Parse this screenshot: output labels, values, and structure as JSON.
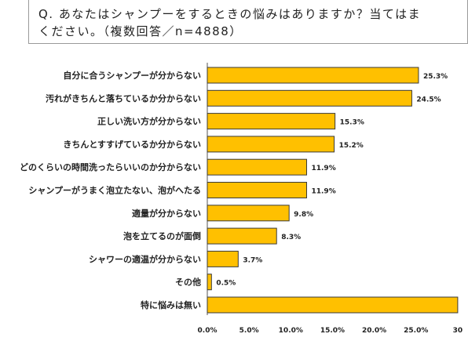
{
  "question": {
    "line1": "Q. あなたはシャンプーをするときの悩みはありますか？当てはま",
    "line2": "ください。（複数回答／n=4888）"
  },
  "chart_data": {
    "type": "bar",
    "orientation": "horizontal",
    "categories": [
      "自分に合うシャンプーが分からない",
      "汚れがきちんと落ちているか分からない",
      "正しい洗い方が分からない",
      "きちんとすすげているか分からない",
      "どのくらいの時間洗ったらいいのか分からない",
      "シャンプーがうまく泡立たない、泡がへたる",
      "適量が分からない",
      "泡を立てるのが面倒",
      "シャワーの適温が分からない",
      "その他",
      "特に悩みは無い"
    ],
    "values": [
      25.3,
      24.5,
      15.3,
      15.2,
      11.9,
      11.9,
      9.8,
      8.3,
      3.7,
      0.5,
      30.0
    ],
    "value_labels": [
      "25.3%",
      "24.5%",
      "15.3%",
      "15.2%",
      "11.9%",
      "11.9%",
      "9.8%",
      "8.3%",
      "3.7%",
      "0.5%",
      ""
    ],
    "x_ticks": [
      "0.0%",
      "5.0%",
      "10.0%",
      "15.0%",
      "20.0%",
      "25.0%",
      "30"
    ],
    "xlim": [
      0,
      30
    ],
    "bar_color": "#FFC000",
    "bar_border_color": "#3a3a3a",
    "grid": false
  }
}
